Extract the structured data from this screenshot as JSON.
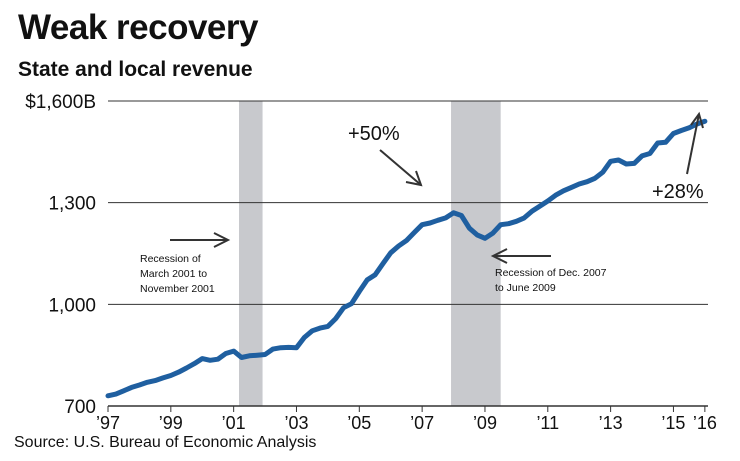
{
  "header": {
    "title": "Weak recovery",
    "subtitle": "State and local revenue"
  },
  "footer": {
    "source": "Source: U.S. Bureau of Economic Analysis"
  },
  "colors": {
    "line": "#1f5fa0",
    "recession": "#c8c9cd",
    "gridline": "#333333",
    "text": "#111111"
  },
  "chart_data": {
    "type": "line",
    "title": "Weak recovery",
    "subtitle": "State and local revenue",
    "xlabel": "",
    "ylabel": "",
    "xlim": [
      1997,
      2016.1
    ],
    "ylim": [
      700,
      1600
    ],
    "grid": true,
    "xticks": [
      {
        "value": 1997,
        "label": "’97"
      },
      {
        "value": 1999,
        "label": "’99"
      },
      {
        "value": 2001,
        "label": "’01"
      },
      {
        "value": 2003,
        "label": "’03"
      },
      {
        "value": 2005,
        "label": "’05"
      },
      {
        "value": 2007,
        "label": "’07"
      },
      {
        "value": 2009,
        "label": "’09"
      },
      {
        "value": 2011,
        "label": "’11"
      },
      {
        "value": 2013,
        "label": "’13"
      },
      {
        "value": 2015,
        "label": "’15"
      },
      {
        "value": 2016,
        "label": "’16"
      }
    ],
    "yticks": [
      {
        "value": 1600,
        "label": "$1,600B"
      },
      {
        "value": 1300,
        "label": "1,300"
      },
      {
        "value": 1000,
        "label": "1,000"
      },
      {
        "value": 700,
        "label": "700"
      }
    ],
    "recessions": [
      {
        "start": 2001.17,
        "end": 2001.92,
        "label": [
          "Recession of",
          "March 2001 to",
          "November 2001"
        ]
      },
      {
        "start": 2007.92,
        "end": 2009.5,
        "label": [
          "Recession of Dec. 2007",
          "to June  2009"
        ]
      }
    ],
    "annotations": [
      {
        "text": "+50%"
      },
      {
        "text": "+28%"
      }
    ],
    "series": [
      {
        "name": "State and local revenue",
        "x": [
          1997.0,
          1997.25,
          1997.5,
          1997.75,
          1998.0,
          1998.25,
          1998.5,
          1998.75,
          1999.0,
          1999.25,
          1999.5,
          1999.75,
          2000.0,
          2000.25,
          2000.5,
          2000.75,
          2001.0,
          2001.25,
          2001.5,
          2001.75,
          2002.0,
          2002.25,
          2002.5,
          2002.75,
          2003.0,
          2003.25,
          2003.5,
          2003.75,
          2004.0,
          2004.25,
          2004.5,
          2004.75,
          2005.0,
          2005.25,
          2005.5,
          2005.75,
          2006.0,
          2006.25,
          2006.5,
          2006.75,
          2007.0,
          2007.25,
          2007.5,
          2007.75,
          2008.0,
          2008.25,
          2008.5,
          2008.75,
          2009.0,
          2009.25,
          2009.5,
          2009.75,
          2010.0,
          2010.25,
          2010.5,
          2010.75,
          2011.0,
          2011.25,
          2011.5,
          2011.75,
          2012.0,
          2012.25,
          2012.5,
          2012.75,
          2013.0,
          2013.25,
          2013.5,
          2013.75,
          2014.0,
          2014.25,
          2014.5,
          2014.75,
          2015.0,
          2015.25,
          2015.5,
          2015.75,
          2016.0
        ],
        "values": [
          730,
          735,
          745,
          755,
          762,
          770,
          775,
          783,
          790,
          800,
          812,
          825,
          840,
          835,
          838,
          855,
          862,
          843,
          848,
          850,
          852,
          868,
          872,
          873,
          872,
          902,
          922,
          930,
          935,
          958,
          990,
          1002,
          1038,
          1072,
          1087,
          1120,
          1152,
          1172,
          1188,
          1212,
          1235,
          1240,
          1248,
          1255,
          1270,
          1262,
          1225,
          1205,
          1195,
          1210,
          1235,
          1238,
          1245,
          1255,
          1275,
          1290,
          1305,
          1322,
          1335,
          1345,
          1355,
          1362,
          1372,
          1390,
          1422,
          1426,
          1414,
          1416,
          1438,
          1445,
          1476,
          1478,
          1504,
          1513,
          1521,
          1532,
          1540
        ]
      }
    ]
  }
}
